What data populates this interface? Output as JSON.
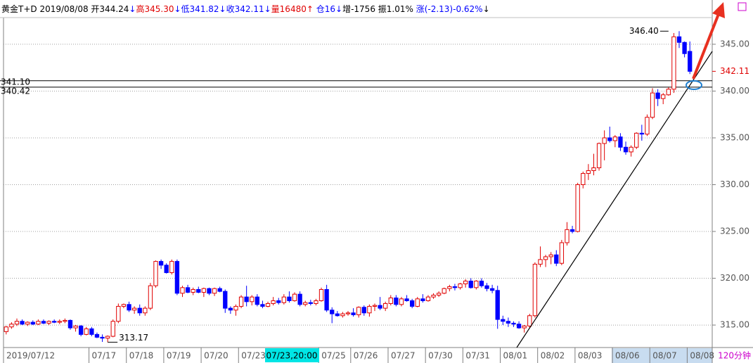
{
  "chart_data": {
    "type": "candlestick",
    "header": [
      {
        "text": "黄金T+D 2019/08/08 开344.24",
        "color": "#000000"
      },
      {
        "text": "↓",
        "color": "#0000ff"
      },
      {
        "text": "高345.30",
        "color": "#e00000"
      },
      {
        "text": "↓",
        "color": "#0000ff"
      },
      {
        "text": "低341.82",
        "color": "#0000ff"
      },
      {
        "text": "↓",
        "color": "#0000ff"
      },
      {
        "text": "收342.11",
        "color": "#0000ff"
      },
      {
        "text": "↓",
        "color": "#0000ff"
      },
      {
        "text": "量16480",
        "color": "#e00000"
      },
      {
        "text": "↑",
        "color": "#e00000"
      },
      {
        "text": " 仓16",
        "color": "#0000ff"
      },
      {
        "text": "↓",
        "color": "#0000ff"
      },
      {
        "text": "增-1756 振1.01% ",
        "color": "#000000"
      },
      {
        "text": "涨(-2.13)-0.62%",
        "color": "#0000ff"
      },
      {
        "text": "↓",
        "color": "#000000"
      }
    ],
    "period": "120分钟",
    "cursor_label": "07/23,20:00",
    "up_color": "#e00000",
    "down_color": "#0000ff",
    "ylim": [
      312.6,
      347.85
    ],
    "yticks": [
      {
        "value": 315,
        "label": "315.00"
      },
      {
        "value": 320,
        "label": "320.00"
      },
      {
        "value": 325,
        "label": "325.00"
      },
      {
        "value": 330,
        "label": "330.00"
      },
      {
        "value": 335,
        "label": "335.00"
      },
      {
        "value": 340,
        "label": "340.00"
      },
      {
        "value": 345,
        "label": "345.00"
      }
    ],
    "grid": true,
    "hlines": [
      {
        "value": 341.1,
        "label": "341.10"
      },
      {
        "value": 340.42,
        "label": "340.42"
      }
    ],
    "last_price": {
      "value": 342.11,
      "label": "342.11"
    },
    "extremes": [
      {
        "index": 124,
        "value": 346.4,
        "label": "346.40"
      },
      {
        "index": 19,
        "value": 313.17,
        "label": "313.17"
      }
    ],
    "categories": [
      "2019/07/12",
      null,
      null,
      null,
      null,
      null,
      null,
      null,
      null,
      null,
      null,
      null,
      null,
      null,
      null,
      null,
      "07/17",
      null,
      null,
      null,
      null,
      null,
      null,
      "07/18",
      null,
      null,
      null,
      null,
      null,
      null,
      "07/19",
      null,
      null,
      null,
      null,
      null,
      null,
      "07/20",
      null,
      null,
      null,
      null,
      null,
      null,
      "07/23",
      null,
      null,
      null,
      null,
      null,
      null,
      null,
      null,
      null,
      null,
      null,
      null,
      null,
      null,
      "07/25",
      null,
      null,
      null,
      null,
      null,
      "07/26",
      null,
      null,
      null,
      null,
      null,
      null,
      "07/27",
      null,
      null,
      null,
      null,
      null,
      null,
      "07/30",
      null,
      null,
      null,
      null,
      null,
      null,
      "07/31",
      null,
      null,
      null,
      null,
      null,
      null,
      "08/01",
      null,
      null,
      null,
      null,
      null,
      null,
      "08/02",
      null,
      null,
      null,
      null,
      null,
      null,
      "08/03",
      null,
      null,
      null,
      null,
      null,
      null,
      "08/06",
      null,
      null,
      null,
      null,
      null,
      null,
      "08/07",
      null,
      null,
      null,
      null,
      null,
      null,
      "08/08"
    ],
    "ohlc": [
      [
        314.3,
        314.9,
        314.0,
        314.8
      ],
      [
        314.8,
        315.3,
        314.6,
        315.1
      ],
      [
        315.1,
        315.7,
        314.9,
        315.4
      ],
      [
        315.4,
        315.6,
        315.0,
        315.1
      ],
      [
        315.1,
        315.4,
        314.9,
        315.3
      ],
      [
        315.3,
        315.5,
        315.0,
        315.1
      ],
      [
        315.1,
        315.6,
        315.0,
        315.4
      ],
      [
        315.4,
        315.6,
        315.1,
        315.2
      ],
      [
        315.2,
        315.5,
        315.0,
        315.4
      ],
      [
        315.4,
        315.6,
        315.2,
        315.3
      ],
      [
        315.3,
        315.6,
        315.1,
        315.4
      ],
      [
        315.4,
        315.7,
        315.2,
        315.5
      ],
      [
        315.5,
        315.6,
        314.5,
        314.7
      ],
      [
        314.7,
        315.0,
        314.3,
        314.9
      ],
      [
        314.9,
        315.0,
        313.8,
        314.0
      ],
      [
        314.0,
        314.8,
        313.9,
        314.6
      ],
      [
        314.6,
        314.8,
        313.8,
        314.0
      ],
      [
        314.0,
        314.2,
        313.6,
        313.7
      ],
      [
        313.7,
        314.0,
        313.2,
        313.6
      ],
      [
        313.6,
        313.9,
        313.17,
        313.8
      ],
      [
        313.8,
        315.6,
        313.7,
        315.4
      ],
      [
        315.4,
        317.3,
        315.2,
        317.0
      ],
      [
        317.0,
        317.3,
        316.8,
        317.2
      ],
      [
        317.2,
        317.5,
        316.4,
        316.6
      ],
      [
        316.6,
        317.0,
        316.2,
        316.8
      ],
      [
        316.8,
        317.2,
        316.0,
        316.3
      ],
      [
        316.3,
        317.0,
        316.0,
        316.8
      ],
      [
        316.8,
        319.5,
        316.6,
        319.2
      ],
      [
        319.2,
        321.9,
        319.0,
        321.8
      ],
      [
        321.8,
        322.0,
        321.0,
        321.4
      ],
      [
        321.4,
        321.6,
        320.5,
        320.6
      ],
      [
        320.6,
        322.0,
        320.4,
        321.8
      ],
      [
        321.8,
        322.0,
        318.2,
        318.4
      ],
      [
        318.4,
        319.2,
        318.0,
        319.0
      ],
      [
        319.0,
        319.3,
        318.4,
        318.5
      ],
      [
        318.5,
        319.0,
        318.2,
        318.8
      ],
      [
        318.8,
        319.1,
        318.4,
        318.5
      ],
      [
        318.5,
        319.0,
        318.0,
        318.9
      ],
      [
        318.9,
        319.0,
        318.2,
        318.4
      ],
      [
        318.4,
        319.0,
        318.1,
        318.9
      ],
      [
        318.9,
        319.1,
        318.5,
        318.6
      ],
      [
        318.6,
        318.8,
        316.3,
        316.8
      ],
      [
        316.8,
        317.0,
        316.2,
        316.6
      ],
      [
        316.6,
        317.2,
        316.0,
        317.0
      ],
      [
        317.0,
        318.2,
        316.8,
        318.0
      ],
      [
        318.0,
        319.2,
        317.0,
        317.5
      ],
      [
        317.5,
        318.2,
        317.1,
        318.0
      ],
      [
        318.0,
        318.3,
        317.0,
        317.2
      ],
      [
        317.2,
        317.6,
        316.8,
        317.0
      ],
      [
        317.0,
        317.5,
        316.9,
        317.3
      ],
      [
        317.3,
        318.0,
        317.1,
        317.6
      ],
      [
        317.6,
        317.9,
        317.2,
        317.4
      ],
      [
        317.4,
        318.3,
        317.2,
        318.0
      ],
      [
        318.0,
        318.6,
        317.4,
        317.6
      ],
      [
        317.6,
        318.5,
        317.5,
        318.3
      ],
      [
        318.3,
        318.6,
        317.0,
        317.2
      ],
      [
        317.2,
        317.6,
        317.0,
        317.4
      ],
      [
        317.4,
        317.7,
        317.1,
        317.3
      ],
      [
        317.3,
        317.8,
        317.1,
        317.6
      ],
      [
        317.6,
        319.0,
        317.5,
        318.8
      ],
      [
        318.8,
        319.3,
        316.4,
        316.6
      ],
      [
        316.6,
        316.9,
        315.2,
        316.2
      ],
      [
        316.2,
        316.5,
        315.9,
        316.0
      ],
      [
        316.0,
        316.4,
        315.8,
        316.2
      ],
      [
        316.2,
        316.5,
        316.0,
        316.3
      ],
      [
        316.3,
        316.8,
        315.9,
        316.1
      ],
      [
        316.1,
        317.0,
        315.8,
        316.9
      ],
      [
        316.9,
        317.1,
        316.0,
        316.3
      ],
      [
        316.3,
        317.2,
        315.9,
        317.0
      ],
      [
        317.0,
        317.3,
        316.5,
        317.1
      ],
      [
        317.1,
        318.0,
        316.6,
        316.8
      ],
      [
        316.8,
        317.5,
        316.5,
        317.3
      ],
      [
        317.3,
        318.2,
        317.1,
        317.9
      ],
      [
        317.9,
        318.2,
        317.0,
        317.2
      ],
      [
        317.2,
        318.0,
        317.0,
        317.8
      ],
      [
        317.8,
        318.2,
        317.5,
        317.6
      ],
      [
        317.6,
        317.8,
        316.8,
        317.0
      ],
      [
        317.0,
        318.0,
        316.9,
        317.8
      ],
      [
        317.8,
        318.3,
        317.4,
        317.6
      ],
      [
        317.6,
        318.2,
        317.5,
        318.0
      ],
      [
        318.0,
        318.4,
        317.8,
        318.2
      ],
      [
        318.2,
        318.6,
        318.0,
        318.4
      ],
      [
        318.4,
        319.0,
        318.3,
        318.9
      ],
      [
        318.9,
        319.3,
        318.6,
        319.1
      ],
      [
        319.1,
        319.4,
        318.7,
        319.0
      ],
      [
        319.0,
        319.5,
        318.8,
        319.4
      ],
      [
        319.4,
        319.9,
        319.0,
        319.7
      ],
      [
        319.7,
        320.0,
        318.9,
        319.0
      ],
      [
        319.0,
        319.8,
        318.8,
        319.7
      ],
      [
        319.7,
        320.0,
        319.0,
        319.2
      ],
      [
        319.2,
        319.5,
        318.6,
        318.9
      ],
      [
        318.9,
        319.3,
        318.4,
        318.7
      ],
      [
        318.7,
        319.2,
        314.6,
        315.6
      ],
      [
        315.6,
        316.0,
        315.0,
        315.4
      ],
      [
        315.4,
        315.8,
        314.8,
        315.2
      ],
      [
        315.2,
        315.4,
        314.8,
        315.1
      ],
      [
        315.1,
        315.4,
        314.6,
        314.7
      ],
      [
        314.7,
        315.0,
        314.2,
        314.9
      ],
      [
        314.9,
        316.2,
        314.7,
        316.0
      ],
      [
        316.0,
        321.7,
        315.8,
        321.5
      ],
      [
        321.5,
        323.4,
        321.2,
        322.0
      ],
      [
        322.0,
        322.5,
        321.2,
        322.3
      ],
      [
        322.3,
        322.8,
        321.5,
        322.5
      ],
      [
        322.5,
        323.0,
        321.3,
        321.6
      ],
      [
        321.6,
        324.1,
        321.4,
        323.8
      ],
      [
        323.8,
        326.0,
        323.5,
        325.2
      ],
      [
        325.2,
        325.6,
        324.8,
        325.0
      ],
      [
        325.0,
        330.2,
        324.9,
        330.0
      ],
      [
        330.0,
        331.4,
        329.6,
        331.2
      ],
      [
        331.2,
        332.2,
        330.5,
        331.5
      ],
      [
        331.5,
        333.3,
        331.0,
        331.8
      ],
      [
        331.8,
        334.5,
        331.5,
        334.4
      ],
      [
        334.4,
        335.8,
        332.6,
        335.0
      ],
      [
        335.0,
        336.2,
        334.5,
        334.7
      ],
      [
        334.7,
        335.3,
        334.0,
        335.1
      ],
      [
        335.1,
        335.5,
        333.6,
        334.0
      ],
      [
        334.0,
        334.6,
        333.2,
        333.5
      ],
      [
        333.5,
        334.2,
        333.0,
        334.0
      ],
      [
        334.0,
        335.6,
        333.8,
        335.5
      ],
      [
        335.5,
        336.4,
        334.7,
        335.4
      ],
      [
        335.4,
        337.5,
        335.2,
        337.2
      ],
      [
        337.2,
        340.3,
        337.0,
        339.8
      ],
      [
        339.8,
        340.2,
        338.4,
        339.2
      ],
      [
        339.2,
        339.8,
        338.6,
        339.6
      ],
      [
        339.6,
        340.4,
        339.5,
        340.2
      ],
      [
        340.2,
        346.2,
        339.8,
        345.8
      ],
      [
        345.8,
        346.4,
        344.6,
        345.2
      ],
      [
        345.2,
        345.3,
        343.6,
        344.0
      ],
      [
        344.24,
        345.3,
        341.82,
        342.11
      ]
    ]
  }
}
